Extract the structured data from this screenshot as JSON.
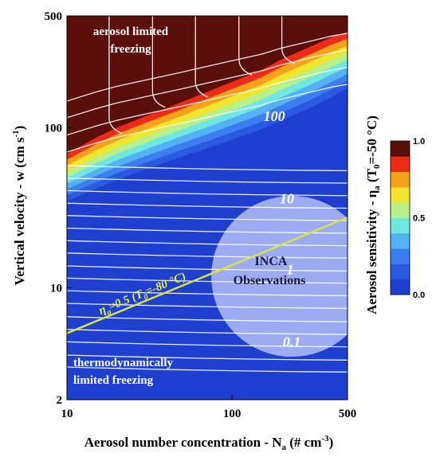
{
  "chart_data": {
    "type": "heatmap",
    "x_axis": {
      "label_main": "Aerosol number concentration - N",
      "label_sub": "a",
      "label_tail": " (# cm",
      "label_sup": "-3",
      "label_end": ")",
      "scale": "log",
      "range": [
        10,
        500
      ],
      "ticks": [
        10,
        100,
        500
      ],
      "tick_labels": [
        "10",
        "100",
        "500"
      ]
    },
    "y_axis": {
      "label_main": "Vertical velocity - w (cm s",
      "label_sup": "-1",
      "label_end": ")",
      "scale": "log",
      "range": [
        2,
        500
      ],
      "ticks": [
        2,
        10,
        100,
        500
      ],
      "tick_labels": [
        "2",
        "10",
        "100",
        "500"
      ]
    },
    "colorbar": {
      "label_main": "Aerosol sensitivity - η",
      "label_sub": "a",
      "label_tail": " (T",
      "label_sub2": "0",
      "label_end": "=-50 °C)",
      "range": [
        0,
        1
      ],
      "tick_labels": [
        "1.0",
        "0.5",
        "0.0"
      ],
      "tick_values": [
        1.0,
        0.5,
        0.0
      ],
      "levels": [
        {
          "from": 0.0,
          "to": 0.1,
          "color": "#1e3fcf"
        },
        {
          "from": 0.1,
          "to": 0.2,
          "color": "#2a5ae0"
        },
        {
          "from": 0.2,
          "to": 0.3,
          "color": "#3c7df0"
        },
        {
          "from": 0.3,
          "to": 0.4,
          "color": "#52b2f3"
        },
        {
          "from": 0.4,
          "to": 0.5,
          "color": "#6fe8e2"
        },
        {
          "from": 0.5,
          "to": 0.6,
          "color": "#b9f08a"
        },
        {
          "from": 0.6,
          "to": 0.7,
          "color": "#f2e52e"
        },
        {
          "from": 0.7,
          "to": 0.8,
          "color": "#f8a21c"
        },
        {
          "from": 0.8,
          "to": 0.9,
          "color": "#ee2a18"
        },
        {
          "from": 0.9,
          "to": 1.0,
          "color": "#5a0f0a"
        }
      ]
    },
    "sensitivity_transition": {
      "description_none": "",
      "x": [
        10,
        15,
        20,
        30,
        50,
        70,
        100,
        150,
        200,
        300,
        400,
        500
      ],
      "w_full": [
        75,
        95,
        110,
        130,
        160,
        185,
        215,
        255,
        300,
        360,
        410,
        440
      ],
      "w_zero": [
        32,
        38,
        43,
        50,
        60,
        67,
        76,
        88,
        100,
        120,
        140,
        160
      ]
    },
    "contours": {
      "labels": [
        "100",
        "10",
        "1",
        "0.1"
      ],
      "label_positions": [
        {
          "text": "100",
          "x": 180,
          "w": 118
        },
        {
          "text": "10",
          "x": 215,
          "w": 36
        },
        {
          "text": "1",
          "x": 225,
          "w": 13
        },
        {
          "text": "0.1",
          "x": 230,
          "w": 4.6
        }
      ],
      "horizontal_w": [
        3.2,
        3.8,
        4.6,
        5.5,
        6.6,
        8,
        9.6,
        11.5,
        13.7,
        16.5,
        19.7,
        23.6,
        28.3,
        33.8,
        40.5,
        48.5,
        58
      ],
      "upper_w": [
        72,
        92,
        118,
        150
      ],
      "vertical_x": [
        18,
        33,
        60,
        110,
        200
      ]
    },
    "eta_line": {
      "label": "η",
      "label_sub": "a",
      "label_mid": "=0.5 (T",
      "label_sub2": "0",
      "label_end": "=-80 °C)",
      "color": "#d8e24a",
      "x": [
        10,
        500
      ],
      "w": [
        5.2,
        27.5
      ]
    },
    "observations": {
      "label_line1": "INCA",
      "label_line2": "Observations",
      "center_x": 230,
      "center_w": 11.8,
      "color": "#cfd6ff"
    },
    "annotations": {
      "top_left_line1": "aerosol limited",
      "top_left_line2": "freezing",
      "bottom_left_line1": "thermodynamically",
      "bottom_left_line2": "limited freezing"
    }
  }
}
